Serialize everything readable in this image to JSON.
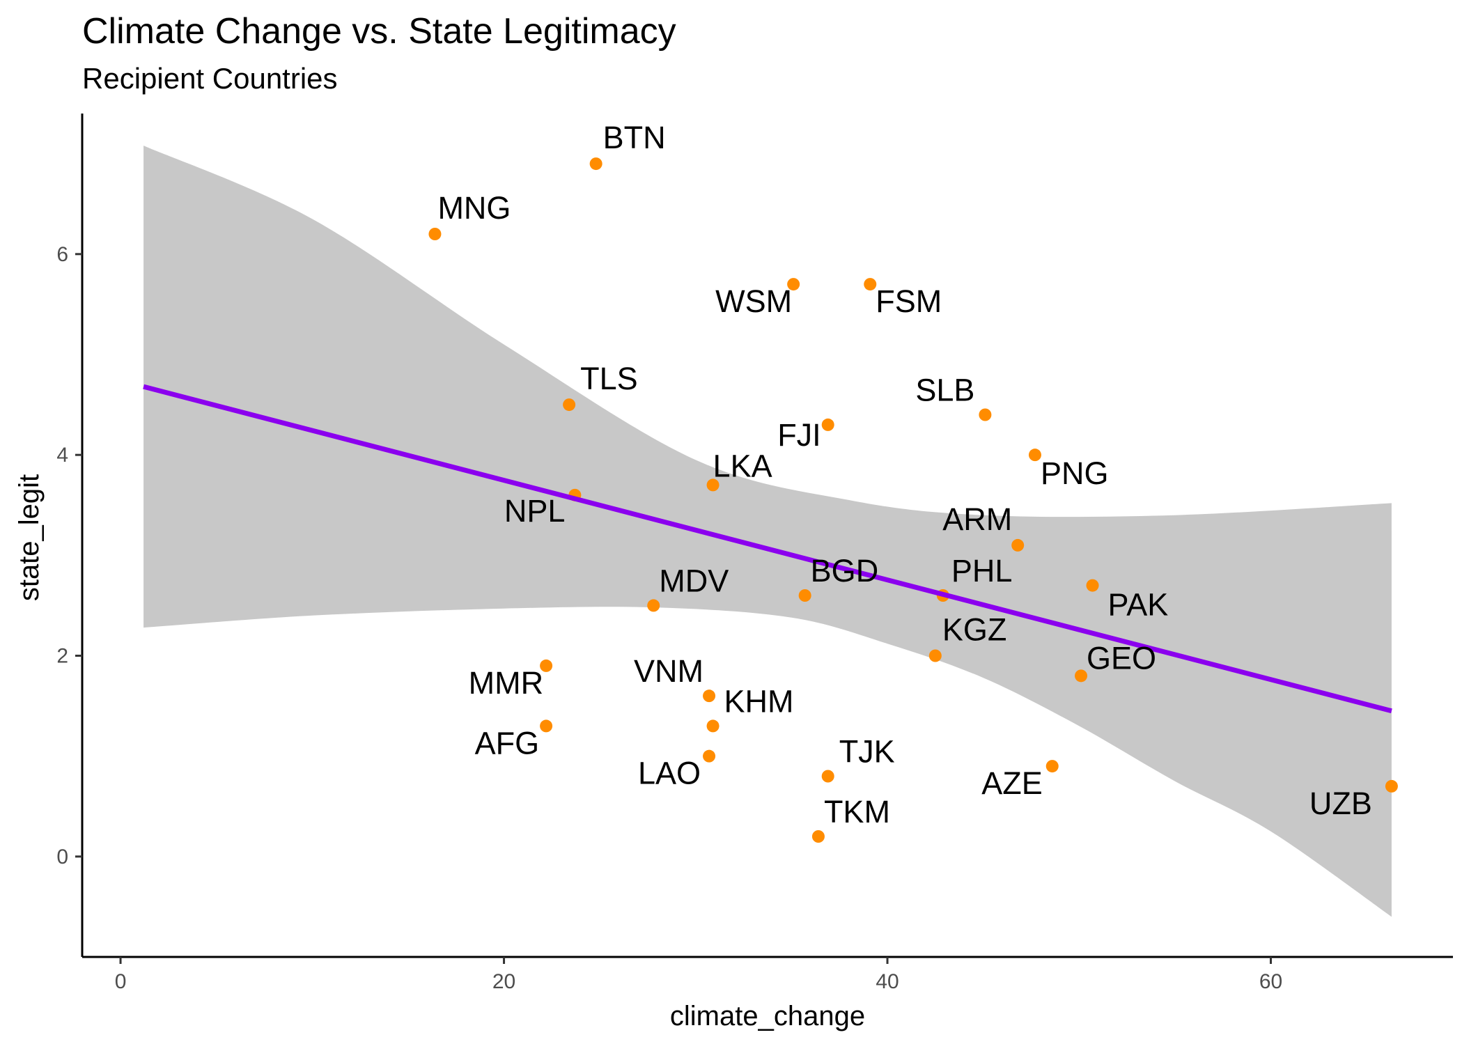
{
  "chart_data": {
    "type": "scatter",
    "title": "Climate Change vs. State Legitimacy",
    "subtitle": "Recipient Countries",
    "xlabel": "climate_change",
    "ylabel": "state_legit",
    "xlim": [
      -2,
      69.5
    ],
    "ylim": [
      -1,
      7.4
    ],
    "x_ticks": [
      0,
      20,
      40,
      60
    ],
    "y_ticks": [
      0,
      2,
      4,
      6
    ],
    "grid": false,
    "legend": "none",
    "colors": {
      "point": "#ff8c00",
      "line": "#8b00ee",
      "ribbon": "#c8c8c8",
      "axis": "#000000"
    },
    "points": [
      {
        "label": "BTN",
        "x": 24.8,
        "y": 6.9
      },
      {
        "label": "MNG",
        "x": 16.4,
        "y": 6.2
      },
      {
        "label": "WSM",
        "x": 35.1,
        "y": 5.7
      },
      {
        "label": "FSM",
        "x": 39.1,
        "y": 5.7
      },
      {
        "label": "TLS",
        "x": 23.4,
        "y": 4.5
      },
      {
        "label": "SLB",
        "x": 45.1,
        "y": 4.4
      },
      {
        "label": "FJI",
        "x": 36.9,
        "y": 4.3
      },
      {
        "label": "PNG",
        "x": 47.7,
        "y": 4.0
      },
      {
        "label": "LKA",
        "x": 30.9,
        "y": 3.7
      },
      {
        "label": "NPL",
        "x": 23.7,
        "y": 3.6
      },
      {
        "label": "ARM",
        "x": 46.8,
        "y": 3.1
      },
      {
        "label": "PAK",
        "x": 50.7,
        "y": 2.7
      },
      {
        "label": "BGD",
        "x": 35.7,
        "y": 2.6
      },
      {
        "label": "PHL",
        "x": 42.9,
        "y": 2.6
      },
      {
        "label": "MDV",
        "x": 27.8,
        "y": 2.5
      },
      {
        "label": "KGZ",
        "x": 42.5,
        "y": 2.0
      },
      {
        "label": "MMR",
        "x": 22.2,
        "y": 1.9
      },
      {
        "label": "GEO",
        "x": 50.1,
        "y": 1.8
      },
      {
        "label": "VNM",
        "x": 30.7,
        "y": 1.6
      },
      {
        "label": "KHM",
        "x": 30.9,
        "y": 1.3
      },
      {
        "label": "AFG",
        "x": 22.2,
        "y": 1.3
      },
      {
        "label": "LAO",
        "x": 30.7,
        "y": 1.0
      },
      {
        "label": "AZE",
        "x": 48.6,
        "y": 0.9
      },
      {
        "label": "TJK",
        "x": 36.9,
        "y": 0.8
      },
      {
        "label": "UZB",
        "x": 66.3,
        "y": 0.7
      },
      {
        "label": "TKM",
        "x": 36.4,
        "y": 0.2
      }
    ],
    "fit": {
      "method": "linear regression",
      "line": [
        [
          1.2,
          4.68
        ],
        [
          66.3,
          1.45
        ]
      ],
      "ribbon_upper": [
        [
          1.2,
          7.08
        ],
        [
          10,
          6.35
        ],
        [
          20,
          5.1
        ],
        [
          30,
          3.95
        ],
        [
          38,
          3.55
        ],
        [
          45,
          3.4
        ],
        [
          55,
          3.4
        ],
        [
          66.3,
          3.52
        ]
      ],
      "ribbon_lower": [
        [
          1.2,
          2.28
        ],
        [
          10,
          2.4
        ],
        [
          20,
          2.47
        ],
        [
          28,
          2.48
        ],
        [
          35,
          2.38
        ],
        [
          40,
          2.12
        ],
        [
          45,
          1.78
        ],
        [
          50,
          1.3
        ],
        [
          55,
          0.75
        ],
        [
          60,
          0.25
        ],
        [
          66.3,
          -0.6
        ]
      ]
    }
  }
}
